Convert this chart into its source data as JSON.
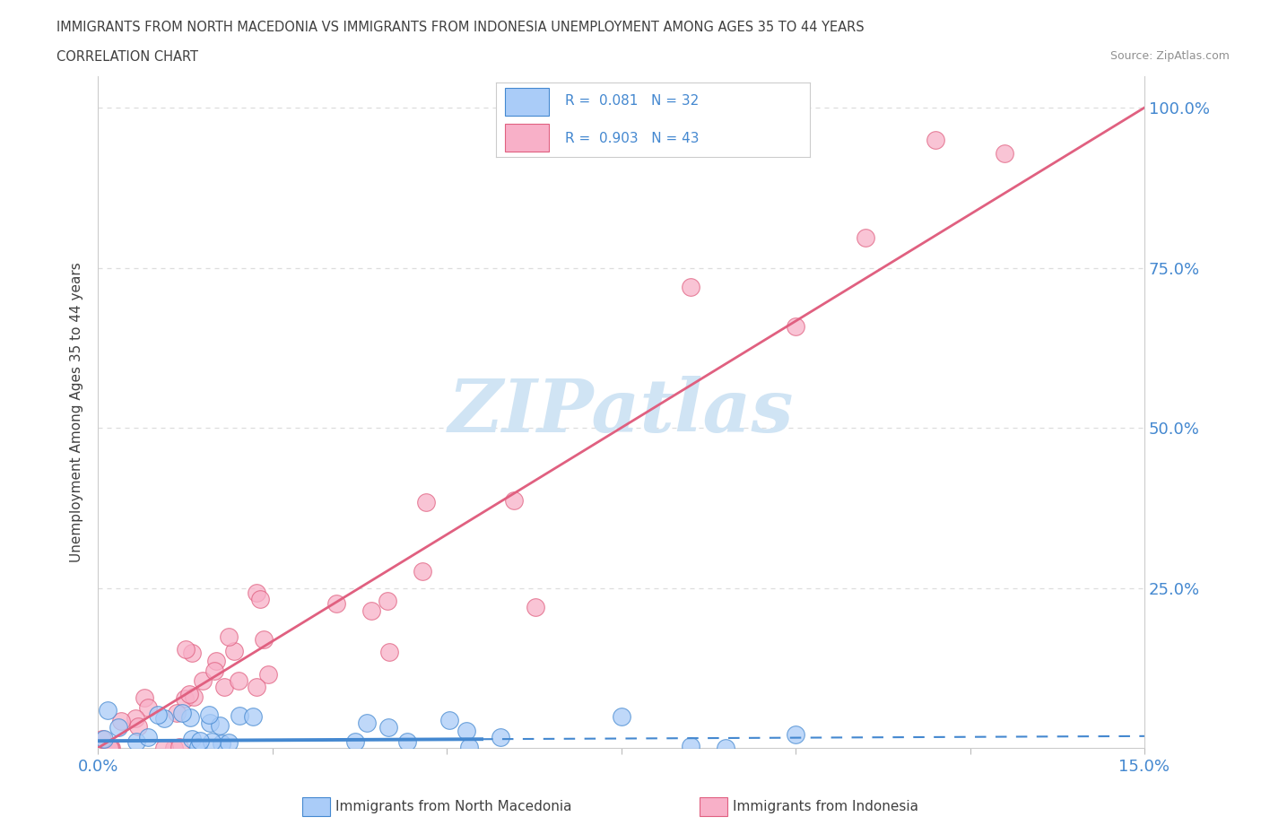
{
  "title_line1": "IMMIGRANTS FROM NORTH MACEDONIA VS IMMIGRANTS FROM INDONESIA UNEMPLOYMENT AMONG AGES 35 TO 44 YEARS",
  "title_line2": "CORRELATION CHART",
  "source_text": "Source: ZipAtlas.com",
  "ylabel": "Unemployment Among Ages 35 to 44 years",
  "xlim": [
    0.0,
    0.15
  ],
  "ylim": [
    0.0,
    1.05
  ],
  "color_macedonia": "#aaccf8",
  "color_indonesia": "#f8b0c8",
  "color_line_macedonia": "#4488d0",
  "color_line_indonesia": "#e06080",
  "watermark_color": "#d0e4f4",
  "grid_color": "#dddddd",
  "title_color": "#404040",
  "source_color": "#909090",
  "tick_label_color": "#4488d0",
  "R_macedonia": 0.081,
  "N_macedonia": 32,
  "R_indonesia": 0.903,
  "N_indonesia": 43,
  "ind_line_x0": 0.0,
  "ind_line_y0": 0.0,
  "ind_line_x1": 0.15,
  "ind_line_y1": 1.0,
  "mac_line_solid_x0": 0.0,
  "mac_line_solid_y0": 0.012,
  "mac_line_solid_x1": 0.055,
  "mac_line_solid_y1": 0.015,
  "mac_line_dash_x0": 0.055,
  "mac_line_dash_y0": 0.015,
  "mac_line_dash_x1": 0.15,
  "mac_line_dash_y1": 0.022
}
